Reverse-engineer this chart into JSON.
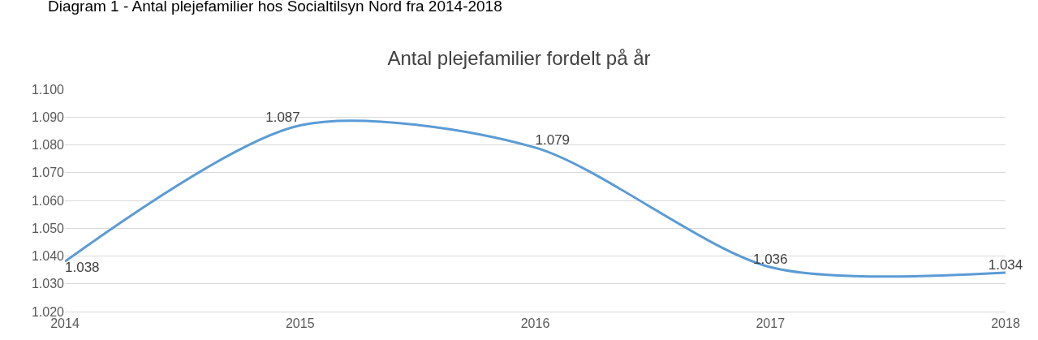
{
  "chart_data": {
    "type": "line",
    "title": "Antal plejefamilier fordelt på år",
    "annotations": [
      "Diagram 1 - Antal plejefamilier hos Socialtilsyn Nord fra 2014-2018"
    ],
    "x": [
      2014,
      2015,
      2016,
      2017,
      2018
    ],
    "series": [
      {
        "color": "#5b9bd5",
        "values": [
          1038,
          1087,
          1079,
          1036,
          1034
        ],
        "value_labels": [
          "1.038",
          "1.087",
          "1.079",
          "1.036",
          "1.034"
        ]
      }
    ],
    "xlim": [
      2014,
      2018
    ],
    "xticks": [
      2014,
      2015,
      2016,
      2017,
      2018
    ],
    "ylim": [
      1020,
      1100
    ],
    "yticks": [
      {
        "value": 1020,
        "label": "1.020"
      },
      {
        "value": 1030,
        "label": "1.030"
      },
      {
        "value": 1040,
        "label": "1.040"
      },
      {
        "value": 1050,
        "label": "1.050"
      },
      {
        "value": 1060,
        "label": "1.060"
      },
      {
        "value": 1070,
        "label": "1.070"
      },
      {
        "value": 1080,
        "label": "1.080"
      },
      {
        "value": 1090,
        "label": "1.090"
      },
      {
        "value": 1100,
        "label": "1.100"
      }
    ],
    "grid": "y",
    "legend": false,
    "marker": "none",
    "line_style": "solid"
  }
}
